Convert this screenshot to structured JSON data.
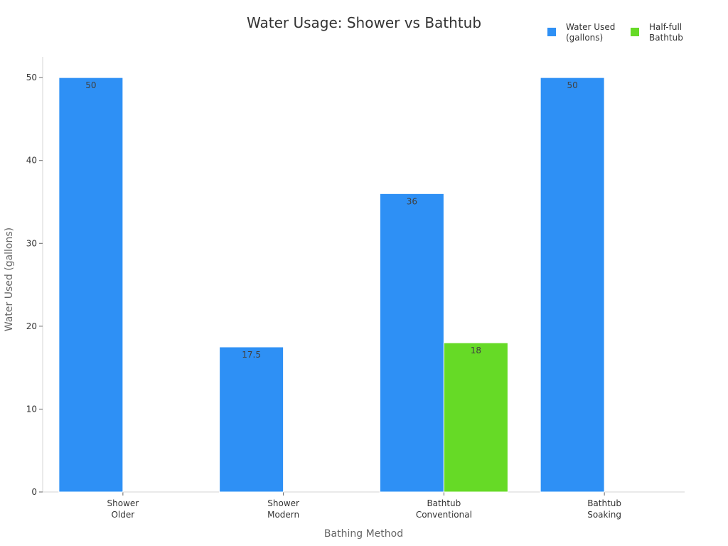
{
  "chart_data": {
    "type": "bar",
    "title": "Water Usage: Shower vs Bathtub",
    "xlabel": "Bathing Method",
    "ylabel": "Water Used (gallons)",
    "categories": [
      [
        "Shower",
        "Older"
      ],
      [
        "Shower",
        "Modern"
      ],
      [
        "Bathtub",
        "Conventional"
      ],
      [
        "Bathtub",
        "Soaking"
      ]
    ],
    "ylim": [
      0,
      52.5
    ],
    "yticks": [
      0,
      10,
      20,
      30,
      40,
      50
    ],
    "grid": false,
    "legend_position": "top-right",
    "series": [
      {
        "name": "Water Used (gallons)",
        "color": "#2E90F5",
        "values": [
          50,
          17.5,
          36,
          50
        ],
        "labels": [
          "50",
          "17.5",
          "36",
          "50"
        ]
      },
      {
        "name": "Half-full Bathtub",
        "color": "#66DA26",
        "values": [
          null,
          null,
          18,
          null
        ],
        "labels": [
          null,
          null,
          "18",
          null
        ]
      }
    ]
  }
}
